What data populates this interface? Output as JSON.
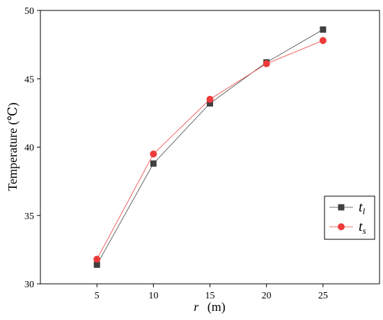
{
  "chart_data": {
    "type": "line",
    "x": [
      5,
      10,
      15,
      20,
      25
    ],
    "xticks": [
      "5",
      "10",
      "15",
      "20",
      "25"
    ],
    "yticks": [
      "30",
      "35",
      "40",
      "45",
      "50"
    ],
    "xlim": [
      0,
      30
    ],
    "ylim": [
      30,
      50
    ],
    "xlabel": {
      "var": "r",
      "unit": "(m)"
    },
    "ylabel": "Temperature (℃)",
    "legend_position": "right",
    "grid": false,
    "series": [
      {
        "name": {
          "base": "t",
          "sub": "l"
        },
        "values": [
          31.4,
          38.8,
          43.2,
          46.2,
          48.6
        ],
        "color": "#404040",
        "marker": "square"
      },
      {
        "name": {
          "base": "t",
          "sub": "s"
        },
        "values": [
          31.8,
          39.5,
          43.5,
          46.1,
          47.8
        ],
        "color": "#ee3a3a",
        "marker": "circle"
      }
    ]
  }
}
